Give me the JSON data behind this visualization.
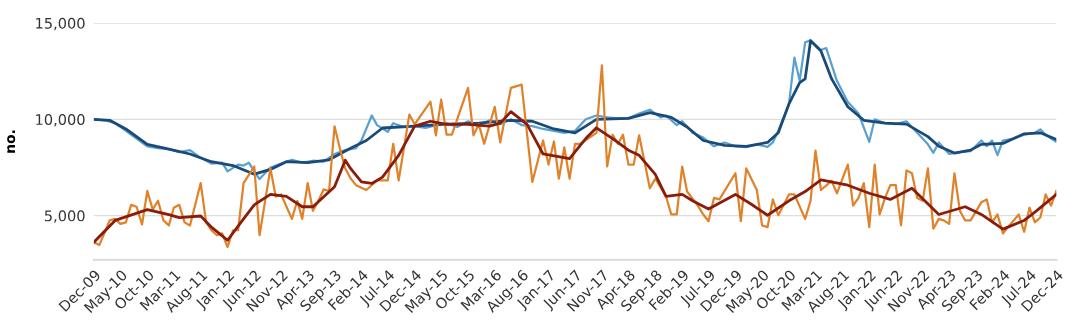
{
  "chart_data": {
    "type": "line",
    "ylabel": "no.",
    "xlim": [
      "2009-12",
      "2024-12"
    ],
    "ylim": [
      2700,
      15000
    ],
    "xticks": [
      {
        "value": "2009-12",
        "label": "Dec-09"
      },
      {
        "value": "2010-05",
        "label": "May-10"
      },
      {
        "value": "2010-10",
        "label": "Oct-10"
      },
      {
        "value": "2011-03",
        "label": "Mar-11"
      },
      {
        "value": "2011-08",
        "label": "Aug-11"
      },
      {
        "value": "2012-01",
        "label": "Jan-12"
      },
      {
        "value": "2012-06",
        "label": "Jun-12"
      },
      {
        "value": "2012-11",
        "label": "Nov-12"
      },
      {
        "value": "2013-04",
        "label": "Apr-13"
      },
      {
        "value": "2013-09",
        "label": "Sep-13"
      },
      {
        "value": "2014-02",
        "label": "Feb-14"
      },
      {
        "value": "2014-07",
        "label": "Jul-14"
      },
      {
        "value": "2014-12",
        "label": "Dec-14"
      },
      {
        "value": "2015-05",
        "label": "May-15"
      },
      {
        "value": "2015-10",
        "label": "Oct-15"
      },
      {
        "value": "2016-03",
        "label": "Mar-16"
      },
      {
        "value": "2016-08",
        "label": "Aug-16"
      },
      {
        "value": "2017-01",
        "label": "Jan-17"
      },
      {
        "value": "2017-06",
        "label": "Jun-17"
      },
      {
        "value": "2017-11",
        "label": "Nov-17"
      },
      {
        "value": "2018-04",
        "label": "Apr-18"
      },
      {
        "value": "2018-09",
        "label": "Sep-18"
      },
      {
        "value": "2019-02",
        "label": "Feb-19"
      },
      {
        "value": "2019-07",
        "label": "Jul-19"
      },
      {
        "value": "2019-12",
        "label": "Dec-19"
      },
      {
        "value": "2020-05",
        "label": "May-20"
      },
      {
        "value": "2020-10",
        "label": "Oct-20"
      },
      {
        "value": "2021-03",
        "label": "Mar-21"
      },
      {
        "value": "2021-08",
        "label": "Aug-21"
      },
      {
        "value": "2022-01",
        "label": "Jan-22"
      },
      {
        "value": "2022-06",
        "label": "Jun-22"
      },
      {
        "value": "2022-11",
        "label": "Nov-22"
      },
      {
        "value": "2023-04",
        "label": "Apr-23"
      },
      {
        "value": "2023-09",
        "label": "Sep-23"
      },
      {
        "value": "2024-02",
        "label": "Feb-24"
      },
      {
        "value": "2024-07",
        "label": "Jul-24"
      },
      {
        "value": "2024-12",
        "label": "Dec-24"
      }
    ],
    "yticks": [
      {
        "value": 5000,
        "label": "5,000"
      },
      {
        "value": 10000,
        "label": "10,000"
      },
      {
        "value": 15000,
        "label": "15,000"
      }
    ],
    "grid": "y",
    "legend": false,
    "marker": "none",
    "line_style": "solid",
    "series": [
      {
        "color": "#5aa0d0",
        "x": [
          "2009-12",
          "2010-02",
          "2010-04",
          "2010-06",
          "2010-08",
          "2010-10",
          "2010-12",
          "2011-02",
          "2011-04",
          "2011-06",
          "2011-08",
          "2011-10",
          "2011-12",
          "2012-01",
          "2012-03",
          "2012-04",
          "2012-05",
          "2012-06",
          "2012-07",
          "2012-09",
          "2012-11",
          "2013-01",
          "2013-03",
          "2013-05",
          "2013-07",
          "2013-09",
          "2013-11",
          "2014-01",
          "2014-02",
          "2014-04",
          "2014-05",
          "2014-07",
          "2014-08",
          "2014-10",
          "2014-12",
          "2015-02",
          "2015-04",
          "2015-06",
          "2015-08",
          "2015-10",
          "2015-12",
          "2016-02",
          "2016-04",
          "2016-06",
          "2016-08",
          "2016-10",
          "2016-12",
          "2017-02",
          "2017-04",
          "2017-06",
          "2017-08",
          "2017-10",
          "2017-12",
          "2018-02",
          "2018-04",
          "2018-06",
          "2018-08",
          "2018-10",
          "2018-11",
          "2019-01",
          "2019-02",
          "2019-04",
          "2019-06",
          "2019-08",
          "2019-10",
          "2019-12",
          "2020-02",
          "2020-04",
          "2020-06",
          "2020-07",
          "2020-08",
          "2020-10",
          "2020-11",
          "2020-12",
          "2021-01",
          "2021-02",
          "2021-04",
          "2021-05",
          "2021-07",
          "2021-09",
          "2021-11",
          "2022-01",
          "2022-02",
          "2022-04",
          "2022-06",
          "2022-08",
          "2022-10",
          "2022-12",
          "2023-01",
          "2023-02",
          "2023-04",
          "2023-06",
          "2023-08",
          "2023-10",
          "2023-11",
          "2023-12",
          "2024-01",
          "2024-02",
          "2024-04",
          "2024-06",
          "2024-08",
          "2024-09",
          "2024-10",
          "2024-12"
        ],
        "values": [
          10000,
          9950,
          9800,
          9400,
          9000,
          8600,
          8500,
          8450,
          8300,
          8400,
          8000,
          7700,
          7750,
          7300,
          7650,
          7600,
          7750,
          7300,
          6900,
          7500,
          7700,
          7900,
          7750,
          7850,
          7800,
          8200,
          8400,
          8500,
          8900,
          10200,
          9700,
          9350,
          9800,
          9600,
          9650,
          9550,
          9700,
          9800,
          9600,
          9900,
          9700,
          9950,
          9750,
          10000,
          9700,
          9650,
          9500,
          9400,
          9300,
          9400,
          10000,
          10200,
          10100,
          10050,
          10050,
          10300,
          10500,
          10100,
          10200,
          9700,
          9900,
          9300,
          9050,
          8600,
          8800,
          8600,
          8550,
          8700,
          8570,
          8800,
          9400,
          10800,
          13200,
          12000,
          14000,
          14100,
          13600,
          13700,
          12000,
          10900,
          10300,
          8830,
          10000,
          9800,
          9750,
          9900,
          9300,
          8700,
          8260,
          8800,
          8200,
          8300,
          8350,
          8900,
          8600,
          8900,
          8140,
          8900,
          9000,
          9200,
          9300,
          9480,
          9200,
          8830
        ]
      },
      {
        "color": "#1a4a78",
        "x": [
          "2009-12",
          "2010-03",
          "2010-06",
          "2010-10",
          "2011-02",
          "2011-06",
          "2011-10",
          "2012-02",
          "2012-06",
          "2012-09",
          "2012-12",
          "2013-04",
          "2013-08",
          "2013-12",
          "2014-03",
          "2014-06",
          "2014-12",
          "2015-06",
          "2015-12",
          "2016-06",
          "2016-10",
          "2017-02",
          "2017-06",
          "2017-10",
          "2018-04",
          "2018-08",
          "2018-12",
          "2019-03",
          "2019-06",
          "2019-10",
          "2020-02",
          "2020-06",
          "2020-08",
          "2020-10",
          "2020-12",
          "2021-01",
          "2021-02",
          "2021-04",
          "2021-06",
          "2021-09",
          "2021-12",
          "2022-04",
          "2022-08",
          "2022-12",
          "2023-02",
          "2023-05",
          "2023-08",
          "2023-10",
          "2024-02",
          "2024-06",
          "2024-09",
          "2024-12"
        ],
        "values": [
          10000,
          9950,
          9500,
          8700,
          8450,
          8200,
          7800,
          7600,
          7150,
          7400,
          7800,
          7750,
          7900,
          8500,
          8900,
          9550,
          9650,
          9750,
          9800,
          9950,
          9900,
          9500,
          9300,
          10000,
          10050,
          10350,
          10100,
          9600,
          8900,
          8650,
          8600,
          8800,
          9300,
          10800,
          11900,
          12100,
          14080,
          13550,
          12100,
          10650,
          9950,
          9800,
          9750,
          9100,
          8600,
          8250,
          8400,
          8700,
          8750,
          9250,
          9300,
          8950
        ]
      },
      {
        "color": "#e0822a",
        "x": [
          "2009-12",
          "2010-01",
          "2010-03",
          "2010-04",
          "2010-05",
          "2010-06",
          "2010-07",
          "2010-08",
          "2010-09",
          "2010-10",
          "2010-11",
          "2010-12",
          "2011-01",
          "2011-02",
          "2011-03",
          "2011-04",
          "2011-05",
          "2011-06",
          "2011-08",
          "2011-09",
          "2011-10",
          "2011-11",
          "2011-12",
          "2012-01",
          "2012-02",
          "2012-03",
          "2012-04",
          "2012-06",
          "2012-07",
          "2012-09",
          "2012-10",
          "2012-11",
          "2013-01",
          "2013-02",
          "2013-03",
          "2013-04",
          "2013-05",
          "2013-06",
          "2013-07",
          "2013-08",
          "2013-09",
          "2013-10",
          "2013-11",
          "2013-12",
          "2014-01",
          "2014-03",
          "2014-05",
          "2014-07",
          "2014-08",
          "2014-09",
          "2014-11",
          "2014-12",
          "2015-03",
          "2015-04",
          "2015-05",
          "2015-06",
          "2015-07",
          "2015-10",
          "2015-11",
          "2015-12",
          "2016-01",
          "2016-03",
          "2016-04",
          "2016-06",
          "2016-08",
          "2016-10",
          "2016-12",
          "2017-01",
          "2017-02",
          "2017-03",
          "2017-04",
          "2017-05",
          "2017-06",
          "2017-07",
          "2017-10",
          "2017-11",
          "2017-12",
          "2018-01",
          "2018-02",
          "2018-03",
          "2018-04",
          "2018-05",
          "2018-06",
          "2018-08",
          "2018-09",
          "2018-11",
          "2018-12",
          "2019-01",
          "2019-02",
          "2019-03",
          "2019-05",
          "2019-06",
          "2019-07",
          "2019-08",
          "2019-09",
          "2019-12",
          "2020-01",
          "2020-02",
          "2020-04",
          "2020-05",
          "2020-06",
          "2020-07",
          "2020-08",
          "2020-10",
          "2020-11",
          "2021-01",
          "2021-02",
          "2021-03",
          "2021-04",
          "2021-06",
          "2021-07",
          "2021-09",
          "2021-10",
          "2021-11",
          "2021-12",
          "2022-01",
          "2022-02",
          "2022-03",
          "2022-04",
          "2022-05",
          "2022-06",
          "2022-07",
          "2022-08",
          "2022-09",
          "2022-10",
          "2022-11",
          "2022-12",
          "2023-01",
          "2023-02",
          "2023-03",
          "2023-04",
          "2023-05",
          "2023-06",
          "2023-07",
          "2023-08",
          "2023-10",
          "2023-11",
          "2023-12",
          "2024-01",
          "2024-02",
          "2024-03",
          "2024-05",
          "2024-06",
          "2024-07",
          "2024-08",
          "2024-09",
          "2024-10",
          "2024-11",
          "2024-12"
        ],
        "values": [
          3620,
          3470,
          4750,
          4830,
          4570,
          4650,
          5560,
          5460,
          4540,
          6280,
          5310,
          5770,
          4750,
          4490,
          5410,
          5560,
          4650,
          4490,
          6690,
          4650,
          4240,
          3980,
          4080,
          3370,
          4240,
          4240,
          6690,
          7550,
          3980,
          7450,
          5990,
          6100,
          4830,
          5770,
          4830,
          6690,
          5250,
          5770,
          6360,
          6280,
          9640,
          8500,
          7450,
          6940,
          6580,
          6330,
          6830,
          6830,
          8730,
          6830,
          10250,
          9740,
          10920,
          9170,
          11020,
          9200,
          9200,
          11630,
          9170,
          9740,
          8730,
          10650,
          8800,
          11630,
          11800,
          6750,
          8900,
          7650,
          8850,
          6920,
          8540,
          6920,
          8730,
          8730,
          9300,
          12800,
          7550,
          9200,
          8730,
          9200,
          7650,
          7650,
          9170,
          6420,
          6920,
          5990,
          5060,
          5060,
          7550,
          6250,
          5520,
          5060,
          4710,
          5920,
          5840,
          7200,
          4710,
          7450,
          6330,
          4490,
          4400,
          5840,
          5020,
          6100,
          6100,
          4830,
          5770,
          8370,
          6330,
          6800,
          6160,
          7650,
          5520,
          5920,
          6690,
          4400,
          7650,
          5060,
          5920,
          6580,
          6580,
          4490,
          7350,
          7200,
          5920,
          5770,
          7450,
          4320,
          4830,
          4750,
          4570,
          7200,
          5250,
          4750,
          4750,
          5690,
          5840,
          4650,
          5060,
          4070,
          4400,
          5060,
          4160,
          5410,
          4650,
          4900,
          6100,
          5520,
          6280
        ]
      },
      {
        "color": "#8a1c0c",
        "x": [
          "2009-12",
          "2010-04",
          "2010-10",
          "2011-02",
          "2011-04",
          "2011-08",
          "2011-10",
          "2012-01",
          "2012-04",
          "2012-06",
          "2012-09",
          "2012-12",
          "2013-03",
          "2013-05",
          "2013-09",
          "2013-11",
          "2013-12",
          "2014-02",
          "2014-04",
          "2014-06",
          "2014-09",
          "2014-12",
          "2015-03",
          "2015-06",
          "2015-10",
          "2016-02",
          "2016-04",
          "2016-06",
          "2016-09",
          "2016-12",
          "2017-05",
          "2017-08",
          "2017-10",
          "2018-01",
          "2018-04",
          "2018-06",
          "2018-09",
          "2018-11",
          "2019-02",
          "2019-04",
          "2019-07",
          "2019-12",
          "2020-03",
          "2020-06",
          "2020-10",
          "2021-01",
          "2021-04",
          "2021-09",
          "2022-01",
          "2022-05",
          "2022-09",
          "2023-02",
          "2023-07",
          "2023-10",
          "2024-02",
          "2024-06",
          "2024-08",
          "2024-12"
        ],
        "values": [
          3620,
          4750,
          5310,
          5050,
          4900,
          4980,
          4400,
          3720,
          4830,
          5560,
          6100,
          6000,
          5460,
          5460,
          6500,
          7880,
          7450,
          6750,
          6670,
          7000,
          8130,
          9650,
          9900,
          9740,
          9740,
          9650,
          9800,
          10400,
          9740,
          8200,
          7960,
          9000,
          9560,
          9000,
          8400,
          8130,
          7140,
          6000,
          6100,
          5770,
          5340,
          6100,
          5590,
          5020,
          5770,
          6250,
          6850,
          6580,
          6160,
          5840,
          6420,
          5060,
          5460,
          5060,
          4300,
          4750,
          5180,
          6100
        ]
      }
    ]
  }
}
